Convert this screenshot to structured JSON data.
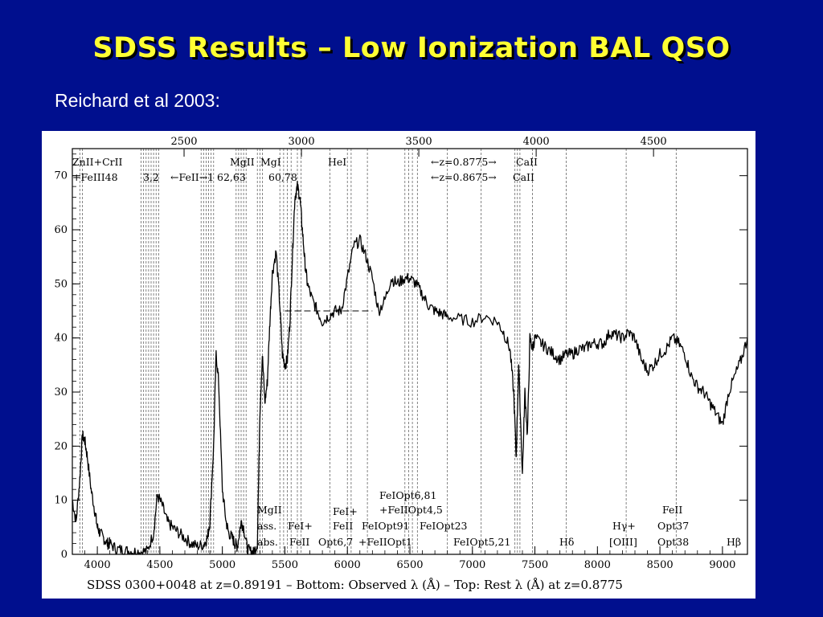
{
  "slide": {
    "title": "SDSS Results – Low Ionization BAL QSO",
    "subtitle": "Reichard et al 2003:",
    "background_color": "#000f8e",
    "title_color": "#ffff33"
  },
  "chart_data": {
    "type": "line",
    "title": "",
    "caption": "SDSS 0300+0048 at z=0.89191 – Bottom: Observed λ (Å) – Top: Rest λ (Å) at z=0.8775",
    "x_bottom_ticks": [
      "4000",
      "4500",
      "5000",
      "5500",
      "6000",
      "6500",
      "7000",
      "7500",
      "8000",
      "8500",
      "9000"
    ],
    "x_top_ticks": [
      "2500",
      "3000",
      "3500",
      "4000",
      "4500"
    ],
    "y_ticks": [
      "0",
      "10",
      "20",
      "30",
      "40",
      "50",
      "60",
      "70"
    ],
    "xlim": [
      3800,
      9200
    ],
    "ylim": [
      0,
      75
    ],
    "grid": false,
    "series": [
      {
        "x": [
          3800,
          3830,
          3860,
          3880,
          3900,
          3920,
          3950,
          3980,
          4000,
          4020,
          4050,
          4080,
          4100,
          4150,
          4200,
          4250,
          4300,
          4350,
          4400,
          4450,
          4480,
          4520,
          4560,
          4600,
          4650,
          4700,
          4750,
          4800,
          4850,
          4880,
          4900,
          4930,
          4950,
          4970,
          5000,
          5030,
          5050,
          5080,
          5100,
          5120,
          5150,
          5170,
          5200,
          5230,
          5250,
          5280,
          5300,
          5320,
          5340,
          5360,
          5380,
          5400,
          5430,
          5460,
          5480,
          5500,
          5520,
          5540,
          5560,
          5580,
          5600,
          5620,
          5640,
          5660,
          5680,
          5720,
          5760,
          5800,
          5850,
          5900,
          5950,
          6000,
          6050,
          6100,
          6150,
          6200,
          6250,
          6300,
          6350,
          6400,
          6450,
          6500,
          6550,
          6600,
          6650,
          6700,
          6750,
          6800,
          6900,
          7000,
          7100,
          7200,
          7250,
          7300,
          7330,
          7350,
          7370,
          7400,
          7420,
          7440,
          7460,
          7480,
          7500,
          7550,
          7600,
          7650,
          7700,
          7750,
          7800,
          7850,
          7900,
          7950,
          8000,
          8050,
          8100,
          8150,
          8200,
          8250,
          8300,
          8350,
          8400,
          8450,
          8500,
          8550,
          8600,
          8650,
          8700,
          8750,
          8800,
          8850,
          8900,
          8950,
          9000,
          9050,
          9100,
          9150,
          9200
        ],
        "values": [
          10,
          6,
          14,
          22,
          21,
          18,
          12,
          8,
          5,
          4,
          3,
          2,
          2,
          1,
          0.8,
          0.6,
          0.5,
          0.5,
          0.6,
          4,
          11,
          9,
          6,
          5,
          4,
          3,
          2,
          1.5,
          1.8,
          3,
          6,
          20,
          37,
          32,
          12,
          6,
          4,
          3,
          2,
          1.5,
          6,
          5,
          1,
          0.4,
          0.3,
          2,
          26,
          37,
          28,
          32,
          43,
          52,
          56,
          46,
          37,
          35,
          36,
          43,
          55,
          66,
          68,
          66,
          60,
          54,
          50,
          47,
          45,
          43,
          44,
          45,
          45,
          51,
          57,
          58,
          55,
          51,
          45,
          47,
          51,
          50,
          51,
          51,
          50,
          48,
          46,
          45,
          44.5,
          44,
          43.5,
          43,
          44,
          43,
          41,
          38,
          30,
          18,
          35,
          15,
          30,
          22,
          40,
          38,
          40,
          39,
          38,
          37,
          36,
          37,
          37,
          38,
          38,
          39,
          39,
          39,
          41,
          40.5,
          40,
          41,
          40,
          36,
          34,
          35,
          37,
          38,
          40,
          39,
          37,
          33,
          31,
          30,
          28,
          26,
          24,
          30,
          33,
          36,
          40
        ]
      }
    ],
    "vertical_marker_lines_observed_A": [
      3860,
      3880,
      4350,
      4370,
      4390,
      4410,
      4430,
      4450,
      4470,
      4490,
      4830,
      4850,
      4870,
      4890,
      4910,
      4930,
      5110,
      5130,
      5150,
      5170,
      5190,
      5280,
      5300,
      5320,
      5460,
      5490,
      5520,
      5550,
      5600,
      5630,
      5860,
      6000,
      6030,
      6160,
      6460,
      6490,
      6520,
      6560,
      6800,
      7070,
      7340,
      7360,
      7380,
      7480,
      7750,
      8230,
      8630
    ],
    "annotations": {
      "top_left": [
        "ZnII+CrII",
        "+FeIII48",
        "3,2",
        "←FeII→1",
        "MgII",
        "62,63",
        "MgI",
        "60,78",
        "HeI",
        "←z=0.8775→",
        "←z=0.8675→",
        "CaII",
        "CaII"
      ],
      "bottom": [
        "MgII",
        "ass.",
        "abs.",
        "FeI+",
        "FeII",
        "FeI+",
        "FeII",
        "Opt6,7",
        "FeIOpt91",
        "FeIOpt6,81",
        "+FeIIOpt4,5",
        "+FeIIOpt1",
        "FeIOpt23",
        "FeIOpt5,21",
        "Hδ",
        "Hγ+",
        "[OIII]",
        "FeII",
        "Opt37",
        "Opt38",
        "Hβ"
      ]
    },
    "horizontal_marker": {
      "x_range": [
        5500,
        6200
      ],
      "y": 45
    }
  }
}
